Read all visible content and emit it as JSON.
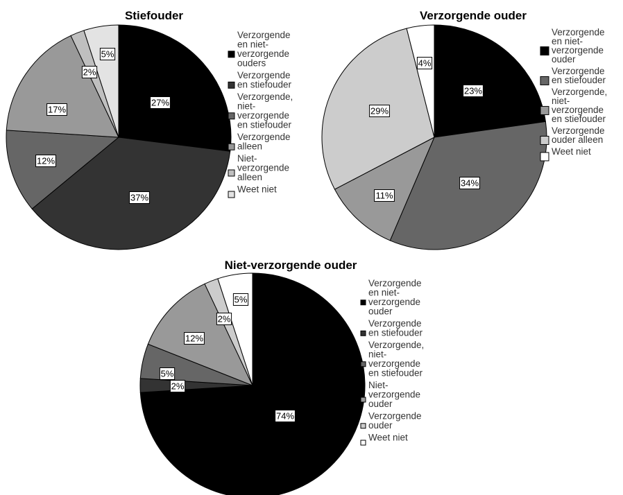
{
  "chart_data": [
    {
      "type": "pie",
      "title": "Stiefouder",
      "slices": [
        {
          "label": "Verzorgende en niet-verzorgende ouders",
          "legend_lines": [
            "Verzorgende",
            "en niet-",
            "verzorgende",
            "ouders"
          ],
          "value": 27,
          "display": "27%",
          "color": "#000000"
        },
        {
          "label": "Verzorgende en stiefouder",
          "legend_lines": [
            "Verzorgende",
            "en stiefouder"
          ],
          "value": 37,
          "display": "37%",
          "color": "#333333"
        },
        {
          "label": "Verzorgende, niet-verzorgende en stiefouder",
          "legend_lines": [
            "Verzorgende,",
            "niet-",
            "verzorgende",
            "en stiefouder"
          ],
          "value": 12,
          "display": "12%",
          "color": "#666666"
        },
        {
          "label": "Verzorgende alleen",
          "legend_lines": [
            "Verzorgende",
            "alleen"
          ],
          "value": 17,
          "display": "17%",
          "color": "#999999"
        },
        {
          "label": "Niet-verzorgende alleen",
          "legend_lines": [
            "Niet-",
            "verzorgende",
            "alleen"
          ],
          "value": 2,
          "display": "2%",
          "color": "#bfbfbf"
        },
        {
          "label": "Weet niet",
          "legend_lines": [
            "Weet niet"
          ],
          "value": 5,
          "display": "5%",
          "color": "#e3e3e3"
        }
      ]
    },
    {
      "type": "pie",
      "title": "Verzorgende ouder",
      "slices": [
        {
          "label": "Verzorgende en niet-verzorgende ouder",
          "legend_lines": [
            "Verzorgende",
            "en niet-",
            "verzorgende",
            "ouder"
          ],
          "value": 23,
          "display": "23%",
          "color": "#000000"
        },
        {
          "label": "Verzorgende en stiefouder",
          "legend_lines": [
            "Verzorgende",
            "en stiefouder"
          ],
          "value": 34,
          "display": "34%",
          "color": "#666666"
        },
        {
          "label": "Verzorgende, niet-verzorgende en stiefouder",
          "legend_lines": [
            "Verzorgende,",
            "niet-",
            "verzorgende",
            "en stiefouder"
          ],
          "value": 11,
          "display": "11%",
          "color": "#999999"
        },
        {
          "label": "Verzorgende ouder alleen",
          "legend_lines": [
            "Verzorgende",
            "ouder alleen"
          ],
          "value": 29,
          "display": "29%",
          "color": "#cccccc"
        },
        {
          "label": "Weet niet",
          "legend_lines": [
            "Weet niet"
          ],
          "value": 4,
          "display": "4%",
          "color": "#ffffff"
        }
      ]
    },
    {
      "type": "pie",
      "title": "Niet-verzorgende ouder",
      "slices": [
        {
          "label": "Verzorgende en niet-verzorgende ouder",
          "legend_lines": [
            "Verzorgende",
            "en niet-",
            "verzorgende",
            "ouder"
          ],
          "value": 74,
          "display": "74%",
          "color": "#000000"
        },
        {
          "label": "Verzorgende en stiefouder",
          "legend_lines": [
            "Verzorgende",
            "en stiefouder"
          ],
          "value": 2,
          "display": "2%",
          "color": "#333333"
        },
        {
          "label": "Verzorgende, niet-verzorgende en stiefouder",
          "legend_lines": [
            "Verzorgende,",
            "niet-",
            "verzorgende",
            "en stiefouder"
          ],
          "value": 5,
          "display": "5%",
          "color": "#666666"
        },
        {
          "label": "Niet-verzorgende ouder",
          "legend_lines": [
            "Niet-",
            "verzorgende",
            "ouder"
          ],
          "value": 12,
          "display": "12%",
          "color": "#999999"
        },
        {
          "label": "Verzorgende ouder",
          "legend_lines": [
            "Verzorgende",
            "ouder"
          ],
          "value": 2,
          "display": "2%",
          "color": "#cccccc"
        },
        {
          "label": "Weet niet",
          "legend_lines": [
            "Weet niet"
          ],
          "value": 5,
          "display": "5%",
          "color": "#ffffff"
        }
      ]
    }
  ]
}
